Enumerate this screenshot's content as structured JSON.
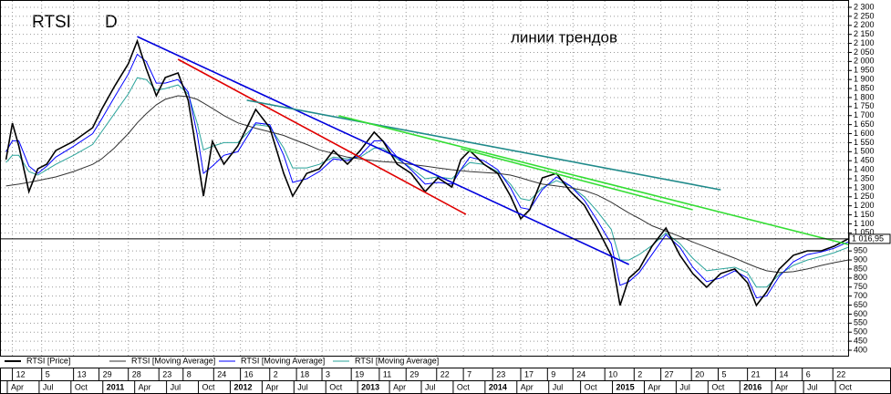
{
  "chart_data": {
    "type": "line",
    "title": "RTSI",
    "timeframe": "D",
    "annotation": "линии трендов",
    "xlim": [
      2010.2,
      2016.85
    ],
    "ylim": [
      400,
      2300
    ],
    "grid": true,
    "x": [
      2010.24,
      2010.29,
      2010.34,
      2010.42,
      2010.49,
      2010.56,
      2010.63,
      2010.77,
      2010.92,
      2010.99,
      2011.09,
      2011.2,
      2011.27,
      2011.34,
      2011.42,
      2011.49,
      2011.59,
      2011.67,
      2011.74,
      2011.79,
      2011.86,
      2011.95,
      2012.06,
      2012.2,
      2012.31,
      2012.42,
      2012.49,
      2012.6,
      2012.7,
      2012.81,
      2012.92,
      2013.02,
      2013.13,
      2013.2,
      2013.31,
      2013.42,
      2013.53,
      2013.63,
      2013.74,
      2013.81,
      2013.88,
      2013.99,
      2014.1,
      2014.2,
      2014.28,
      2014.35,
      2014.45,
      2014.56,
      2014.67,
      2014.78,
      2014.88,
      2014.99,
      2015.06,
      2015.13,
      2015.21,
      2015.31,
      2015.42,
      2015.53,
      2015.63,
      2015.74,
      2015.85,
      2015.96,
      2016.06,
      2016.13,
      2016.21,
      2016.31,
      2016.42,
      2016.53,
      2016.64,
      2016.74,
      2016.85
    ],
    "series": [
      {
        "name": "RTSI [Price]",
        "color": "#000000",
        "values": [
          1456,
          1658,
          1532,
          1279,
          1405,
          1431,
          1506,
          1557,
          1633,
          1734,
          1860,
          1987,
          2113,
          1961,
          1810,
          1911,
          1936,
          1784,
          1481,
          1254,
          1557,
          1431,
          1532,
          1734,
          1633,
          1380,
          1254,
          1380,
          1405,
          1506,
          1431,
          1506,
          1608,
          1557,
          1431,
          1380,
          1279,
          1355,
          1304,
          1456,
          1506,
          1431,
          1380,
          1254,
          1128,
          1178,
          1355,
          1380,
          1279,
          1203,
          1077,
          926,
          648,
          799,
          850,
          976,
          1077,
          926,
          825,
          749,
          825,
          850,
          774,
          648,
          723,
          850,
          926,
          951,
          951,
          976,
          1016.95
        ]
      },
      {
        "name": "RTSI [Moving Average]",
        "color": "#333333",
        "values": [
          1310,
          1315,
          1320,
          1330,
          1340,
          1350,
          1360,
          1390,
          1430,
          1460,
          1520,
          1600,
          1660,
          1710,
          1760,
          1790,
          1810,
          1805,
          1790,
          1770,
          1740,
          1700,
          1660,
          1630,
          1610,
          1590,
          1570,
          1540,
          1510,
          1490,
          1470,
          1460,
          1450,
          1445,
          1440,
          1430,
          1420,
          1410,
          1400,
          1395,
          1390,
          1385,
          1380,
          1370,
          1355,
          1340,
          1320,
          1310,
          1300,
          1285,
          1260,
          1220,
          1190,
          1160,
          1130,
          1090,
          1060,
          1030,
          1000,
          970,
          940,
          910,
          880,
          860,
          840,
          830,
          835,
          850,
          870,
          885,
          900
        ]
      },
      {
        "name": "RTSI [Moving Average]",
        "color": "#0000ff",
        "values": [
          1500,
          1560,
          1560,
          1420,
          1380,
          1420,
          1470,
          1530,
          1600,
          1680,
          1800,
          1930,
          2040,
          2000,
          1880,
          1880,
          1900,
          1830,
          1600,
          1380,
          1420,
          1480,
          1500,
          1660,
          1650,
          1480,
          1330,
          1350,
          1390,
          1460,
          1450,
          1480,
          1560,
          1560,
          1470,
          1400,
          1320,
          1330,
          1320,
          1400,
          1470,
          1450,
          1400,
          1300,
          1190,
          1180,
          1290,
          1360,
          1310,
          1230,
          1120,
          990,
          760,
          780,
          830,
          930,
          1040,
          970,
          860,
          780,
          800,
          840,
          800,
          690,
          700,
          810,
          890,
          930,
          945,
          965,
          1000
        ]
      },
      {
        "name": "RTSI [Moving Average]",
        "color": "#2aa39a",
        "values": [
          1440,
          1480,
          1480,
          1390,
          1370,
          1400,
          1430,
          1480,
          1540,
          1610,
          1710,
          1820,
          1910,
          1900,
          1840,
          1850,
          1870,
          1820,
          1660,
          1510,
          1530,
          1550,
          1550,
          1650,
          1640,
          1520,
          1410,
          1410,
          1430,
          1470,
          1460,
          1470,
          1520,
          1520,
          1460,
          1410,
          1350,
          1360,
          1350,
          1400,
          1440,
          1430,
          1390,
          1320,
          1240,
          1230,
          1300,
          1340,
          1310,
          1250,
          1170,
          1070,
          900,
          900,
          930,
          980,
          1050,
          990,
          910,
          840,
          850,
          860,
          830,
          750,
          750,
          820,
          870,
          900,
          920,
          940,
          970
        ]
      }
    ],
    "trend_lines": [
      {
        "color": "#e00000",
        "x": [
          2011.59,
          2013.85
        ],
        "y": [
          2012,
          1153
        ]
      },
      {
        "color": "#0000dd",
        "x": [
          2011.27,
          2015.13
        ],
        "y": [
          2138,
          875
        ]
      },
      {
        "color": "#1f8a8a",
        "x": [
          2012.13,
          2015.85
        ],
        "y": [
          1785,
          1289
        ]
      },
      {
        "color": "#33dd33",
        "x": [
          2012.85,
          2016.85
        ],
        "y": [
          1699,
          986
        ]
      },
      {
        "color": "#33dd33",
        "x": [
          2013.81,
          2015.63
        ],
        "y": [
          1517,
          1178
        ]
      }
    ],
    "last_price": {
      "value": 1016.95,
      "label": "1 016,95"
    },
    "yticks": [
      {
        "value": 2300,
        "label": "2 300"
      },
      {
        "value": 2250,
        "label": "2 250"
      },
      {
        "value": 2200,
        "label": "2 200"
      },
      {
        "value": 2150,
        "label": "2 150"
      },
      {
        "value": 2100,
        "label": "2 100"
      },
      {
        "value": 2050,
        "label": "2 050"
      },
      {
        "value": 2000,
        "label": "2 000"
      },
      {
        "value": 1950,
        "label": "1 950"
      },
      {
        "value": 1900,
        "label": "1 900"
      },
      {
        "value": 1850,
        "label": "1 850"
      },
      {
        "value": 1800,
        "label": "1 800"
      },
      {
        "value": 1750,
        "label": "1 750"
      },
      {
        "value": 1700,
        "label": "1 700"
      },
      {
        "value": 1650,
        "label": "1 650"
      },
      {
        "value": 1600,
        "label": "1 600"
      },
      {
        "value": 1550,
        "label": "1 550"
      },
      {
        "value": 1500,
        "label": "1 500"
      },
      {
        "value": 1450,
        "label": "1 450"
      },
      {
        "value": 1400,
        "label": "1 400"
      },
      {
        "value": 1350,
        "label": "1 350"
      },
      {
        "value": 1300,
        "label": "1 300"
      },
      {
        "value": 1250,
        "label": "1 250"
      },
      {
        "value": 1200,
        "label": "1 200"
      },
      {
        "value": 1150,
        "label": "1 150"
      },
      {
        "value": 1100,
        "label": "1 100"
      },
      {
        "value": 1050,
        "label": "1 050"
      },
      950,
      900,
      850,
      800,
      750,
      700,
      650,
      600,
      550,
      500,
      450,
      400
    ],
    "xticks_days": [
      {
        "value": 2010.29,
        "label": "12"
      },
      {
        "value": 2010.52,
        "label": "5"
      },
      {
        "value": 2010.77,
        "label": "13"
      },
      {
        "value": 2010.97,
        "label": "29"
      },
      {
        "value": 2011.2,
        "label": "28"
      },
      {
        "value": 2011.44,
        "label": "23"
      },
      {
        "value": 2011.63,
        "label": "8"
      },
      {
        "value": 2011.87,
        "label": "24"
      },
      {
        "value": 2012.08,
        "label": "16"
      },
      {
        "value": 2012.31,
        "label": "2"
      },
      {
        "value": 2012.52,
        "label": "18"
      },
      {
        "value": 2012.72,
        "label": "3"
      },
      {
        "value": 2012.95,
        "label": "19"
      },
      {
        "value": 2013.17,
        "label": "11"
      },
      {
        "value": 2013.38,
        "label": "29"
      },
      {
        "value": 2013.62,
        "label": "22"
      },
      {
        "value": 2013.83,
        "label": "7"
      },
      {
        "value": 2014.06,
        "label": "23"
      },
      {
        "value": 2014.28,
        "label": "17"
      },
      {
        "value": 2014.49,
        "label": "9"
      },
      {
        "value": 2014.69,
        "label": "24"
      },
      {
        "value": 2014.94,
        "label": "10"
      },
      {
        "value": 2015.17,
        "label": "2"
      },
      {
        "value": 2015.38,
        "label": "27"
      },
      {
        "value": 2015.62,
        "label": "20"
      },
      {
        "value": 2015.83,
        "label": "5"
      },
      {
        "value": 2016.06,
        "label": "21"
      },
      {
        "value": 2016.28,
        "label": "14"
      },
      {
        "value": 2016.49,
        "label": "6"
      },
      {
        "value": 2016.73,
        "label": "22"
      }
    ],
    "xticks": [
      {
        "value": 2010.25,
        "label": "Apr"
      },
      {
        "value": 2010.5,
        "label": "Jul"
      },
      {
        "value": 2010.75,
        "label": "Oct"
      },
      2011,
      {
        "value": 2011.25,
        "label": "Apr"
      },
      {
        "value": 2011.5,
        "label": "Jul"
      },
      {
        "value": 2011.75,
        "label": "Oct"
      },
      2012,
      {
        "value": 2012.25,
        "label": "Apr"
      },
      {
        "value": 2012.5,
        "label": "Jul"
      },
      {
        "value": 2012.75,
        "label": "Oct"
      },
      2013,
      {
        "value": 2013.25,
        "label": "Apr"
      },
      {
        "value": 2013.5,
        "label": "Jul"
      },
      {
        "value": 2013.75,
        "label": "Oct"
      },
      2014,
      {
        "value": 2014.25,
        "label": "Apr"
      },
      {
        "value": 2014.5,
        "label": "Jul"
      },
      {
        "value": 2014.75,
        "label": "Oct"
      },
      2015,
      {
        "value": 2015.25,
        "label": "Apr"
      },
      {
        "value": 2015.5,
        "label": "Jul"
      },
      {
        "value": 2015.75,
        "label": "Oct"
      },
      2016,
      {
        "value": 2016.25,
        "label": "Apr"
      },
      {
        "value": 2016.5,
        "label": "Jul"
      },
      {
        "value": 2016.75,
        "label": "Oct"
      }
    ]
  }
}
